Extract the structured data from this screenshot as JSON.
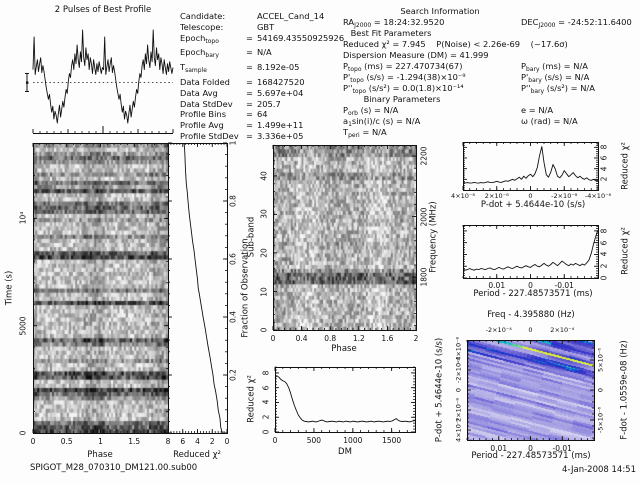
{
  "meta": {
    "filename": "SPIGOT_M28_070310_DM121.00.sub00",
    "datetime": "4-Jan-2008 14:51"
  },
  "header": {
    "left_lines": [
      {
        "label": [
          "Candidate:"
        ],
        "eq": "",
        "value": "ACCEL_Cand_14"
      },
      {
        "label": [
          "Telescope:"
        ],
        "eq": "",
        "value": "GBT"
      },
      {
        "label": [
          "Epoch",
          {
            "sub": "topo"
          }
        ],
        "eq": "=",
        "value": "54169.43550925926"
      },
      {
        "label": [
          "Epoch",
          {
            "sub": "bary"
          }
        ],
        "eq": "=",
        "value": "N/A"
      },
      {
        "label": [
          "T",
          {
            "sub": "sample"
          }
        ],
        "eq": "=",
        "value": "8.192e-05"
      },
      {
        "label": [
          "Data Folded"
        ],
        "eq": "=",
        "value": "168427520"
      },
      {
        "label": [
          "Data Avg"
        ],
        "eq": "=",
        "value": "5.697e+04"
      },
      {
        "label": [
          "Data StdDev"
        ],
        "eq": "=",
        "value": "205.7"
      },
      {
        "label": [
          "Profile Bins"
        ],
        "eq": "=",
        "value": "64"
      },
      {
        "label": [
          "Profile Avg"
        ],
        "eq": "=",
        "value": "1.499e+11"
      },
      {
        "label": [
          "Profile StdDev"
        ],
        "eq": "=",
        "value": "3.336e+05"
      }
    ]
  },
  "search": {
    "title": "Search Information",
    "ra": [
      "RA",
      {
        "sub": "J2000"
      },
      " = 18:24:32.9520"
    ],
    "dec": [
      "DEC",
      {
        "sub": "J2000"
      },
      " = -24:52:11.6400"
    ],
    "best_fit": "Best Fit Parameters",
    "chi_line": "Reduced χ² = 7.945    P(Noise) < 2.26e-69    (~17.6σ)",
    "dm_line": "Dispersion Measure (DM) = 41.999",
    "pairs": [
      [
        [
          "P",
          {
            "sub": "topo"
          },
          " (ms) = 227.470734(67)"
        ],
        [
          "P",
          {
            "sub": "bary"
          },
          " (ms) = N/A"
        ]
      ],
      [
        [
          "P'",
          {
            "sub": "topo"
          },
          " (s/s) = -1.294(38)×10⁻⁹"
        ],
        [
          "P'",
          {
            "sub": "bary"
          },
          " (s/s) = N/A"
        ]
      ],
      [
        [
          "P''",
          {
            "sub": "topo"
          },
          " (s/s²) = 0.0(1.8)×10⁻¹⁴"
        ],
        [
          "P''",
          {
            "sub": "bary"
          },
          " (s/s²) = N/A"
        ]
      ]
    ],
    "binary_title": "Binary Parameters",
    "binary_pairs": [
      [
        [
          "P",
          {
            "sub": "orb"
          },
          " (s) = N/A"
        ],
        [
          "e = N/A"
        ]
      ],
      [
        [
          "a",
          {
            "sub": "1"
          },
          "sin(i)/c (s) = N/A"
        ],
        [
          "ω (rad) = N/A"
        ]
      ],
      [
        [
          "T",
          {
            "sub": "peri"
          },
          " = N/A"
        ],
        [
          ""
        ]
      ]
    ]
  },
  "chart_data": [
    {
      "id": "pulse_profile",
      "type": "line",
      "title": "2 Pulses of Best Profile",
      "x_range": [
        0,
        2
      ],
      "repeat": 2,
      "mean_level": 0.47,
      "values": [
        0.6,
        0.93,
        0.55,
        0.63,
        0.7,
        0.58,
        0.66,
        0.72,
        0.57,
        0.64,
        0.58,
        0.5,
        0.42,
        0.36,
        0.3,
        0.35,
        0.25,
        0.17,
        0.23,
        0.1,
        0.18,
        0.14,
        0.06,
        0.16,
        0.24,
        0.12,
        0.2,
        0.28,
        0.22,
        0.32,
        0.4,
        0.36,
        0.48,
        0.56,
        0.52,
        0.64,
        0.7,
        0.6,
        0.76,
        0.66,
        0.85,
        0.7,
        0.62,
        0.78,
        0.68,
        1.0,
        0.72,
        0.64,
        0.82,
        0.7,
        0.76,
        0.6,
        0.72,
        0.66,
        0.56,
        0.7,
        0.62,
        0.55,
        0.66,
        0.58,
        0.68,
        0.62,
        0.56,
        0.62
      ]
    },
    {
      "id": "time_vs_phase",
      "type": "heatmap",
      "xlabel": "Phase",
      "ylabel": "Time (s)",
      "xticks": [
        "0",
        "0.5",
        "1",
        "1.5"
      ],
      "yticks": [
        "0",
        "5000",
        "10⁴"
      ],
      "x_range": [
        0,
        2
      ],
      "y_range_s": [
        0,
        13500
      ],
      "pulse_phase": [
        0.78,
        1.05
      ],
      "note": "greyscale fold intensity, dark horizontal streaks at bright intervals"
    },
    {
      "id": "chi2_vs_time",
      "type": "line",
      "xlabel": "Reduced χ²",
      "ylabel_right": "Fraction of Observation",
      "xticks": [
        "8",
        "6",
        "4",
        "2",
        "0"
      ],
      "yticks_right": [
        "0.2",
        "0.4",
        "0.6",
        "0.8",
        "1"
      ],
      "x_range": [
        8,
        0
      ],
      "points_fraction_chi2": [
        [
          0,
          0.25
        ],
        [
          0.02,
          0.5
        ],
        [
          0.05,
          0.6
        ],
        [
          0.08,
          0.85
        ],
        [
          0.11,
          1.0
        ],
        [
          0.14,
          1.2
        ],
        [
          0.17,
          1.45
        ],
        [
          0.2,
          1.6
        ],
        [
          0.23,
          1.8
        ],
        [
          0.26,
          2.0
        ],
        [
          0.3,
          2.3
        ],
        [
          0.33,
          2.5
        ],
        [
          0.36,
          2.7
        ],
        [
          0.4,
          3.0
        ],
        [
          0.43,
          3.2
        ],
        [
          0.45,
          3.35
        ],
        [
          0.48,
          3.55
        ],
        [
          0.5,
          3.7
        ],
        [
          0.53,
          3.8
        ],
        [
          0.56,
          3.95
        ],
        [
          0.6,
          4.15
        ],
        [
          0.63,
          4.3
        ],
        [
          0.66,
          4.5
        ],
        [
          0.7,
          4.7
        ],
        [
          0.73,
          4.85
        ],
        [
          0.76,
          5.0
        ],
        [
          0.8,
          5.15
        ],
        [
          0.83,
          5.25
        ],
        [
          0.86,
          5.4
        ],
        [
          0.9,
          5.5
        ],
        [
          0.93,
          5.55
        ],
        [
          0.96,
          5.6
        ],
        [
          1,
          5.7
        ]
      ]
    },
    {
      "id": "subband_vs_phase",
      "type": "heatmap",
      "xlabel": "Phase",
      "ylabel": "Sub-band",
      "ylabel_right": "Frequency (MHz)",
      "xticks": [
        "0",
        "0.4",
        "0.8",
        "1.2",
        "1.6",
        "2"
      ],
      "yticks": [
        "0",
        "10",
        "20",
        "30",
        "40"
      ],
      "yticks_right": [
        "1800",
        "2000",
        "2200"
      ],
      "x_range": [
        0,
        2
      ],
      "y_range": [
        0,
        48
      ],
      "freq_range_mhz": [
        1625,
        2237
      ],
      "dark_band_subbands": [
        [
          12,
          15
        ],
        [
          39,
          41
        ],
        [
          45,
          48
        ]
      ],
      "light_phase_bands": [
        [
          0.35,
          0.6
        ],
        [
          1.35,
          1.6
        ]
      ]
    },
    {
      "id": "chi2_vs_dm",
      "type": "line",
      "xlabel": "DM",
      "ylabel": "Reduced χ²",
      "xticks": [
        "0",
        "500",
        "1000",
        "1500"
      ],
      "yticks": [
        "0",
        "2",
        "4",
        "6",
        "8"
      ],
      "x_range": [
        0,
        1800
      ],
      "y_range": [
        0,
        8.8
      ],
      "points": [
        [
          0,
          7.3
        ],
        [
          25,
          7.6
        ],
        [
          50,
          7.4
        ],
        [
          75,
          7.1
        ],
        [
          100,
          6.9
        ],
        [
          125,
          6.8
        ],
        [
          150,
          6.5
        ],
        [
          175,
          6.0
        ],
        [
          200,
          5.2
        ],
        [
          225,
          4.3
        ],
        [
          250,
          3.5
        ],
        [
          275,
          2.8
        ],
        [
          300,
          2.2
        ],
        [
          325,
          1.8
        ],
        [
          350,
          1.5
        ],
        [
          375,
          1.35
        ],
        [
          400,
          1.3
        ],
        [
          430,
          1.25
        ],
        [
          460,
          1.3
        ],
        [
          490,
          1.35
        ],
        [
          520,
          1.25
        ],
        [
          550,
          1.3
        ],
        [
          580,
          1.45
        ],
        [
          610,
          1.5
        ],
        [
          640,
          1.35
        ],
        [
          670,
          1.25
        ],
        [
          700,
          1.3
        ],
        [
          730,
          1.35
        ],
        [
          760,
          1.3
        ],
        [
          790,
          1.25
        ],
        [
          820,
          1.35
        ],
        [
          850,
          1.3
        ],
        [
          880,
          1.25
        ],
        [
          910,
          1.35
        ],
        [
          940,
          1.3
        ],
        [
          970,
          1.25
        ],
        [
          1000,
          1.35
        ],
        [
          1030,
          1.3
        ],
        [
          1060,
          1.25
        ],
        [
          1090,
          1.3
        ],
        [
          1120,
          1.35
        ],
        [
          1150,
          1.3
        ],
        [
          1180,
          1.25
        ],
        [
          1210,
          1.3
        ],
        [
          1240,
          1.35
        ],
        [
          1270,
          1.25
        ],
        [
          1300,
          1.3
        ],
        [
          1330,
          1.35
        ],
        [
          1360,
          1.3
        ],
        [
          1390,
          1.25
        ],
        [
          1420,
          1.3
        ],
        [
          1450,
          1.35
        ],
        [
          1480,
          1.3
        ],
        [
          1510,
          1.4
        ],
        [
          1540,
          1.6
        ],
        [
          1560,
          1.7
        ],
        [
          1580,
          1.5
        ],
        [
          1610,
          1.35
        ],
        [
          1640,
          1.3
        ],
        [
          1670,
          1.35
        ],
        [
          1700,
          1.3
        ],
        [
          1730,
          1.25
        ],
        [
          1760,
          1.35
        ],
        [
          1800,
          1.45
        ]
      ]
    },
    {
      "id": "chi2_vs_pdot",
      "type": "line",
      "xlabel": "P-dot + 5.4644e-10 (s/s)",
      "ylabel_right": "Reduced χ²",
      "xticks": [
        "4×10⁻⁸",
        "2×10⁻⁸",
        "0",
        "-2×10⁻⁸",
        "-4×10⁻⁸"
      ],
      "yticks_right": [
        "2",
        "4",
        "6",
        "8"
      ],
      "x_range_ss": [
        4e-08,
        -4e-08
      ],
      "y_range": [
        0,
        9
      ],
      "values": [
        1.3,
        1.2,
        1.25,
        1.15,
        1.2,
        1.3,
        1.2,
        1.15,
        1.25,
        1.2,
        1.3,
        1.4,
        1.3,
        1.25,
        1.35,
        1.5,
        1.35,
        1.3,
        1.45,
        1.6,
        1.5,
        1.7,
        1.9,
        1.7,
        2.0,
        2.3,
        1.9,
        2.5,
        2.1,
        2.6,
        2.9,
        2.4,
        3.0,
        4.2,
        6.5,
        8.3,
        5.2,
        2.8,
        2.3,
        3.3,
        4.8,
        3.9,
        2.5,
        2.2,
        2.7,
        3.6,
        3.0,
        2.4,
        2.8,
        3.2,
        2.6,
        2.2,
        2.5,
        2.1,
        1.9,
        2.2,
        1.8,
        1.7,
        1.9,
        1.6,
        1.7
      ]
    },
    {
      "id": "chi2_vs_period",
      "type": "line",
      "xlabel": "Period - 227.48573571 (ms)",
      "ylabel_right": "Reduced χ²",
      "xticks": [
        "0.01",
        "0",
        "-0.01"
      ],
      "yticks_right": [
        "0",
        "2",
        "4",
        "6",
        "8"
      ],
      "x_range_ms": [
        0.017,
        -0.017
      ],
      "y_range": [
        0,
        9
      ],
      "values": [
        1.4,
        1.2,
        1.3,
        1.5,
        1.3,
        1.2,
        1.4,
        1.3,
        1.5,
        1.4,
        1.3,
        1.5,
        1.6,
        1.4,
        1.3,
        1.5,
        1.7,
        1.5,
        1.4,
        1.6,
        1.8,
        1.6,
        1.5,
        1.7,
        1.9,
        1.7,
        1.6,
        1.8,
        2.0,
        1.8,
        1.7,
        2.0,
        2.2,
        1.9,
        1.8,
        2.1,
        2.4,
        2.1,
        1.9,
        2.2,
        2.6,
        2.3,
        2.0,
        2.4,
        2.8,
        2.5,
        2.2,
        2.0,
        2.3,
        2.1,
        2.4,
        2.2,
        2.0,
        2.3,
        2.1,
        2.5,
        3.0,
        4.2,
        5.8,
        7.2,
        8.3
      ]
    },
    {
      "id": "period_pdot_plane",
      "type": "heatmap",
      "title": "Freq - 4.395880 (Hz)",
      "xlabel_bottom": "Period - 227.48573571 (ms)",
      "ylabel_left": "P-dot + 5.4644e-10 (s/s)",
      "ylabel_right": "F-dot - 1.0559e-08 (Hz)",
      "xticks_top": [
        "-2×10⁻⁴",
        "0",
        "2×10⁻⁴"
      ],
      "xticks_bottom": [
        "0.01",
        "0",
        "-0.01"
      ],
      "yticks_left": [
        "4×10⁻⁸",
        "2×10⁻⁸",
        "0",
        "-2×10⁻⁸",
        "-4×10⁻⁸"
      ],
      "yticks_right": [
        "-5×10⁻⁶",
        "0",
        "5×10⁻⁶"
      ],
      "colors": {
        "low": "#f4f2fc",
        "mid": "#7870d8",
        "high": "#3c38c8",
        "peak_cyan": "#00a8e0",
        "peak_green": "#48e878",
        "peak_yellow": "#e0f038"
      },
      "pattern": "diagonal streaks, bright cyan-green ridge upper right"
    }
  ]
}
